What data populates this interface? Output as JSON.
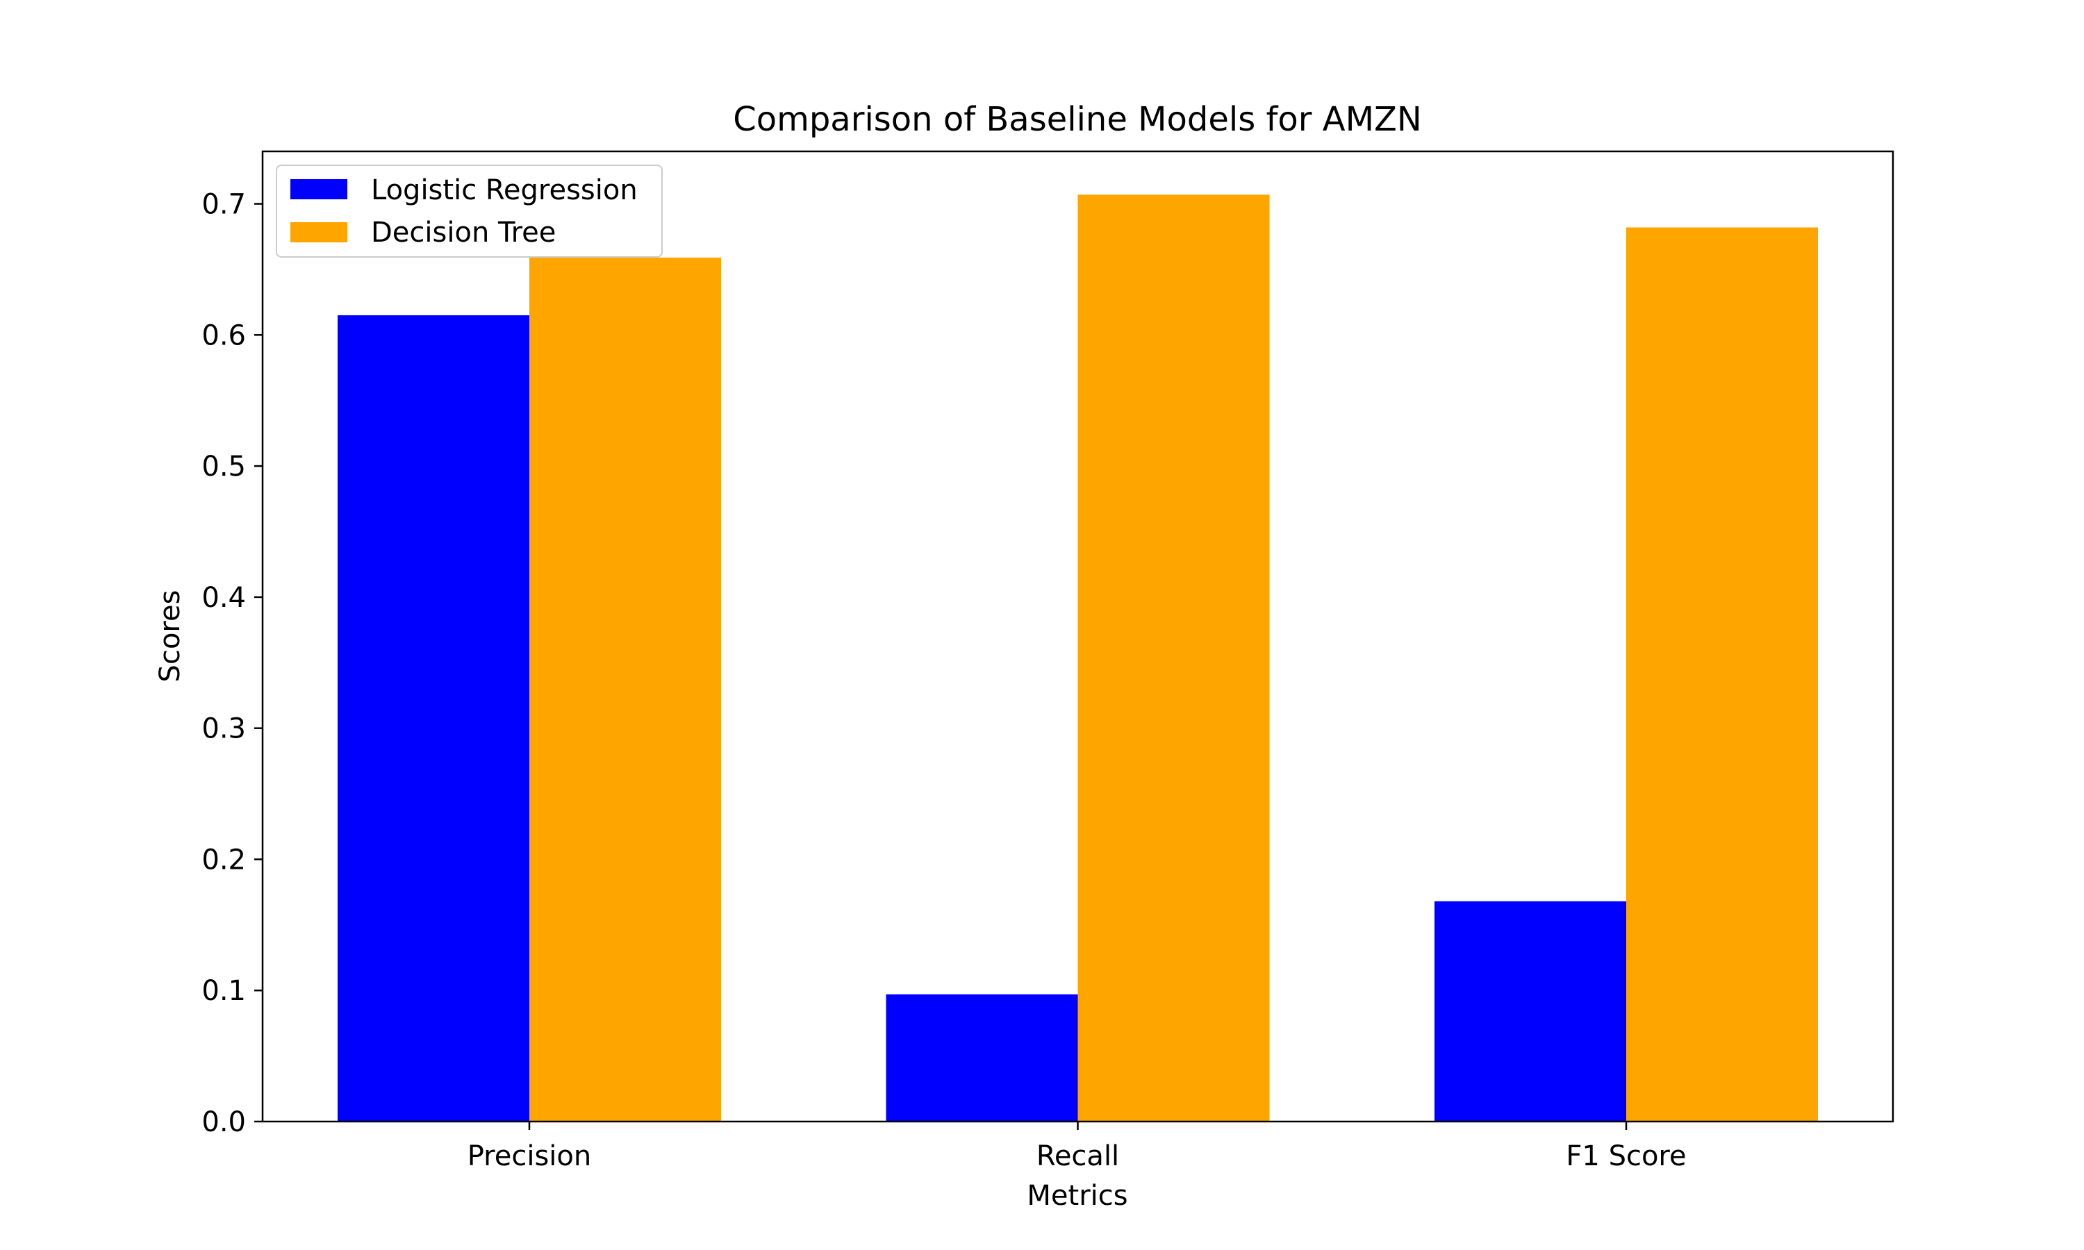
{
  "chart_data": {
    "type": "bar",
    "title": "Comparison of Baseline Models for AMZN",
    "xlabel": "Metrics",
    "ylabel": "Scores",
    "categories": [
      "Precision",
      "Recall",
      "F1 Score"
    ],
    "series": [
      {
        "name": "Logistic Regression",
        "color": "#0000ff",
        "values": [
          0.615,
          0.097,
          0.168
        ]
      },
      {
        "name": "Decision Tree",
        "color": "#ffa500",
        "values": [
          0.659,
          0.707,
          0.682
        ]
      }
    ],
    "ylim": [
      0,
      0.74
    ],
    "yticks": [
      "0.0",
      "0.1",
      "0.2",
      "0.3",
      "0.4",
      "0.5",
      "0.6",
      "0.7"
    ],
    "grid": false,
    "legend_position": "top-left"
  }
}
